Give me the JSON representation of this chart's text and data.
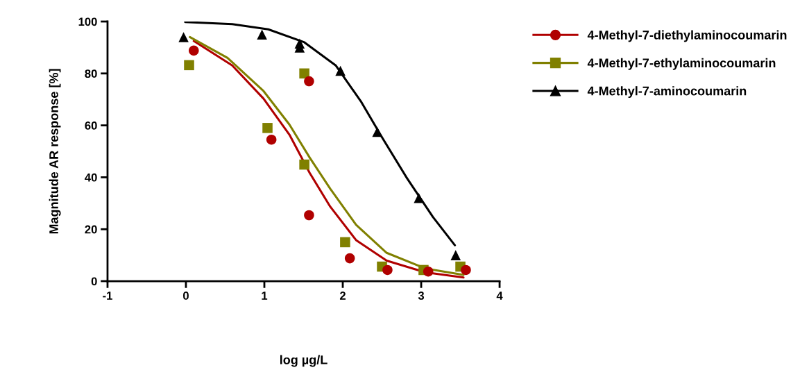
{
  "chart_data": {
    "type": "scatter",
    "xlabel": "log µg/L",
    "ylabel": "Magnitude AR response [%]",
    "xlim": [
      -1,
      4
    ],
    "xticks": [
      -1,
      0,
      1,
      2,
      3,
      4
    ],
    "ylim": [
      0,
      100
    ],
    "yticks": [
      0,
      20,
      40,
      60,
      80,
      100
    ],
    "grid": false,
    "legend": "top right",
    "line_style": "solid",
    "series": [
      {
        "name": "4-Methyl-7-diethylaminocoumarin",
        "color": "#b00000",
        "marker": "circle",
        "x": [
          0.1,
          1.09,
          1.57,
          1.57,
          2.09,
          2.57,
          3.09,
          3.57
        ],
        "values": [
          88.8,
          54.5,
          77,
          25.4,
          8.8,
          4.3,
          3.7,
          4.3
        ]
      },
      {
        "name": "4-Methyl-7-ethylaminocoumarin",
        "color": "#808000",
        "marker": "square",
        "x": [
          0.04,
          1.04,
          1.51,
          1.51,
          2.03,
          2.5,
          3.03,
          3.5
        ],
        "values": [
          83.2,
          59,
          80,
          44.9,
          15,
          5.6,
          4.3,
          5.6
        ]
      },
      {
        "name": "4-Methyl-7-aminocoumarin",
        "color": "#000000",
        "marker": "triangle",
        "x": [
          -0.03,
          0.97,
          1.45,
          1.45,
          1.97,
          2.44,
          2.97,
          3.44
        ],
        "values": [
          94,
          95,
          91.5,
          90,
          81,
          57.5,
          32,
          10
        ]
      },
      {
        "type": "line",
        "color": "#b00000",
        "x": [
          0.1,
          0.59,
          0.99,
          1.32,
          1.58,
          1.84,
          2.17,
          2.56,
          3.05,
          3.54
        ],
        "values": [
          92.5,
          83.1,
          70.3,
          56.4,
          41.6,
          28.7,
          15.8,
          7.9,
          3.4,
          1.4
        ]
      },
      {
        "type": "line",
        "color": "#808000",
        "x": [
          0.05,
          0.53,
          0.99,
          1.32,
          1.58,
          1.84,
          2.17,
          2.56,
          3.05,
          3.54
        ],
        "values": [
          94,
          86,
          73.2,
          60.3,
          47.5,
          35.6,
          21.7,
          10.9,
          4.9,
          2.4
        ]
      },
      {
        "type": "line",
        "color": "#000000",
        "x": [
          -0.01,
          0.59,
          1.05,
          1.51,
          1.91,
          2.23,
          2.5,
          2.82,
          3.15,
          3.43
        ],
        "values": [
          99.8,
          99,
          97,
          92,
          83.1,
          69.3,
          55.4,
          39.6,
          24.7,
          13.8
        ]
      }
    ]
  }
}
